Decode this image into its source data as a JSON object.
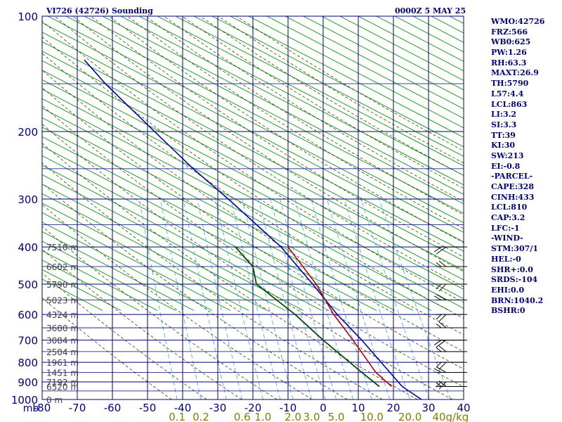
{
  "header": {
    "station_title": "VI726 (42726) Sounding",
    "valid_time": "0000Z  5 MAY 25"
  },
  "indices": [
    "WMO:42726",
    "FRZ:566",
    "WB0:625",
    "PW:1.26",
    "RH:63.3",
    "MAXT:26.9",
    "TH:5790",
    "L57:4.4",
    "LCL:863",
    "LI:3.2",
    "SI:3.3",
    "TT:39",
    "KI:30",
    "SW:213",
    "EI:-0.8",
    "-PARCEL-",
    "CAPE:328",
    "CINH:433",
    "LCL:810",
    "CAP:3.2",
    "LFC:-1",
    "-WIND-",
    "STM:307/1",
    "HEL:-0",
    "SHR+:0.0",
    "SRDS:-104",
    "EHI:0.0",
    "BRN:1040.2",
    "BSHR:0"
  ],
  "colors": {
    "frame": "#000080",
    "isobar": "#000080",
    "isotherm": "#00a000",
    "dry_adiabat": "#404000",
    "mixing_ratio": "#40a0ff",
    "temperature": "#0000b0",
    "dewpoint": "#005000",
    "parcel": "#c00000",
    "height_label": "#404040",
    "mixing_label": "#808000",
    "wind": "#000000"
  },
  "chart_data": {
    "type": "skew-t log-p sounding",
    "xlim": [
      -80,
      40
    ],
    "ylim": [
      1000,
      100
    ],
    "y_scale": "log",
    "x_ticks": [
      "-80",
      "-70",
      "-60",
      "-50",
      "-40",
      "-30",
      "-20",
      "-10",
      "0",
      "10",
      "20",
      "30",
      "40"
    ],
    "x_tick_values": [
      -80,
      -70,
      -60,
      -50,
      -40,
      -30,
      -20,
      -10,
      0,
      10,
      20,
      30,
      40
    ],
    "x_axis_unit": "mb",
    "y_ticks": [
      "100",
      "200",
      "300",
      "400",
      "500",
      "600",
      "700",
      "800",
      "900",
      "1000"
    ],
    "y_tick_values": [
      100,
      200,
      300,
      400,
      500,
      600,
      700,
      800,
      900,
      1000
    ],
    "mixing_ratio_labels": [
      "0.1",
      "0.2",
      "0.6",
      "1.0",
      "2.0",
      "3.0",
      "5.0",
      "10.0",
      "20.0",
      "40g/kg"
    ],
    "mixing_ratio_values": [
      0.1,
      0.2,
      0.6,
      1.0,
      2.0,
      3.0,
      5.0,
      10.0,
      20.0,
      40.0
    ],
    "height_levels": [
      {
        "label": "7510 m",
        "p": 400
      },
      {
        "label": "6602 m",
        "p": 450
      },
      {
        "label": "5790 m",
        "p": 500
      },
      {
        "label": "5023 m",
        "p": 550
      },
      {
        "label": "4324 m",
        "p": 600
      },
      {
        "label": "3680 m",
        "p": 650
      },
      {
        "label": "3084 m",
        "p": 700
      },
      {
        "label": "2504 m",
        "p": 750
      },
      {
        "label": "1961 m",
        "p": 800
      },
      {
        "label": "1451 m",
        "p": 850
      },
      {
        "label": "7192 m",
        "p": 900
      },
      {
        "label": "6520 m",
        "p": 925
      },
      {
        "label": "0 m",
        "p": 1000
      }
    ],
    "series": [
      {
        "key": "temperature",
        "points": [
          [
            1000,
            28
          ],
          [
            925,
            22.5
          ],
          [
            850,
            19
          ],
          [
            700,
            11
          ],
          [
            600,
            4
          ],
          [
            500,
            -3
          ],
          [
            400,
            -12
          ],
          [
            300,
            -27
          ],
          [
            250,
            -37
          ],
          [
            200,
            -48
          ],
          [
            150,
            -62
          ],
          [
            130,
            -68
          ]
        ]
      },
      {
        "key": "dewpoint",
        "points": [
          [
            925,
            16
          ],
          [
            850,
            11
          ],
          [
            700,
            0
          ],
          [
            600,
            -8
          ],
          [
            500,
            -19
          ],
          [
            450,
            -20
          ],
          [
            400,
            -25
          ]
        ]
      },
      {
        "key": "parcel",
        "points": [
          [
            925,
            19.5
          ],
          [
            850,
            15
          ],
          [
            700,
            8.5
          ],
          [
            600,
            3
          ],
          [
            500,
            -2
          ],
          [
            400,
            -10
          ]
        ]
      }
    ],
    "wind_levels": [
      400,
      450,
      500,
      550,
      600,
      650,
      700,
      750,
      800,
      850,
      900,
      925
    ],
    "grid": true
  }
}
